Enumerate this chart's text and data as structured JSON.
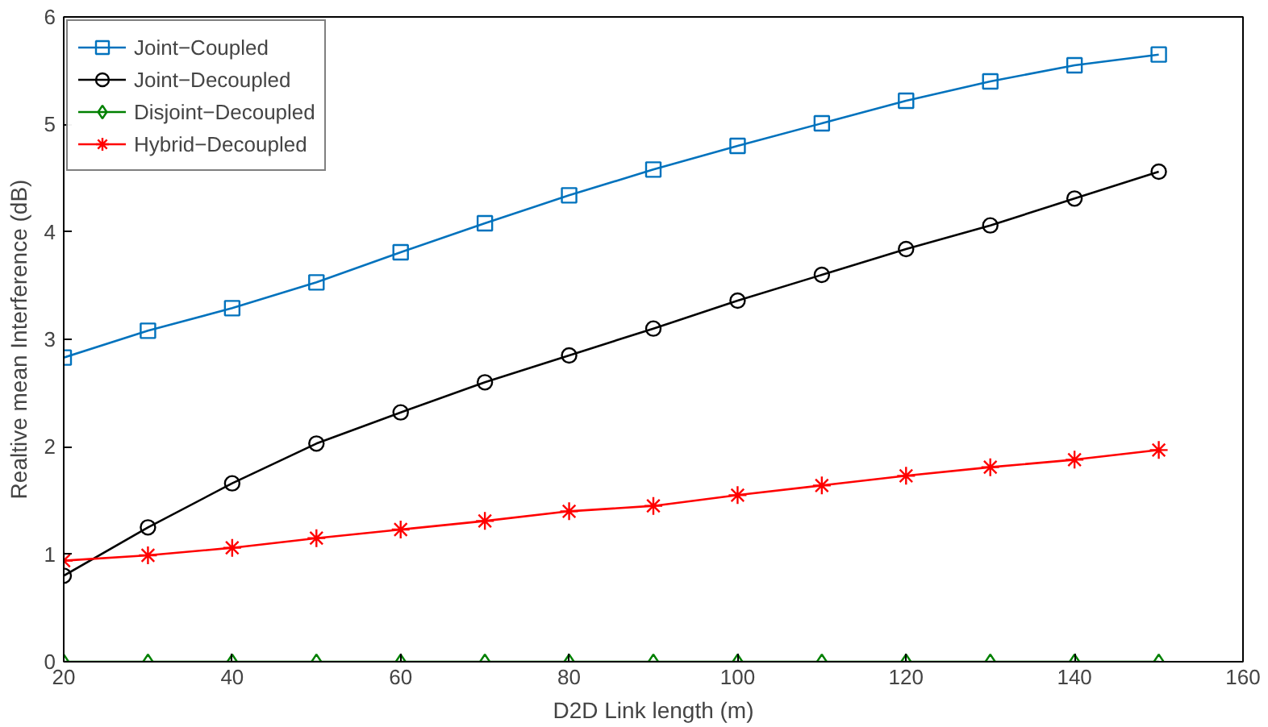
{
  "chart_data": {
    "type": "line",
    "xlabel": "D2D Link length (m)",
    "ylabel": "Realtive mean Interference (dB)",
    "x": [
      20,
      30,
      40,
      50,
      60,
      70,
      80,
      90,
      100,
      110,
      120,
      130,
      140,
      150
    ],
    "xlim": [
      20,
      160
    ],
    "xticks": [
      20,
      40,
      60,
      80,
      100,
      120,
      140,
      160
    ],
    "ylim": [
      0,
      6
    ],
    "yticks": [
      0,
      1,
      2,
      3,
      4,
      5,
      6
    ],
    "legend": "top left",
    "grid": false,
    "line_style": "solid",
    "series": [
      {
        "name": "Joint−Coupled",
        "color": "#0072bd",
        "marker": "square",
        "values": [
          2.83,
          3.08,
          3.29,
          3.53,
          3.81,
          4.08,
          4.34,
          4.58,
          4.8,
          5.01,
          5.22,
          5.4,
          5.55,
          5.65
        ]
      },
      {
        "name": "Joint−Decoupled",
        "color": "#000000",
        "marker": "circle",
        "values": [
          0.8,
          1.25,
          1.66,
          2.03,
          2.32,
          2.6,
          2.85,
          3.1,
          3.36,
          3.6,
          3.84,
          4.06,
          4.31,
          4.56
        ]
      },
      {
        "name": "Disjoint−Decoupled",
        "color": "#008000",
        "marker": "diamond",
        "values": [
          0,
          0,
          0,
          0,
          0,
          0,
          0,
          0,
          0,
          0,
          0,
          0,
          0,
          0
        ]
      },
      {
        "name": "Hybrid−Decoupled",
        "color": "#ff0000",
        "marker": "cross",
        "values": [
          0.94,
          0.99,
          1.06,
          1.15,
          1.23,
          1.31,
          1.4,
          1.45,
          1.55,
          1.64,
          1.73,
          1.81,
          1.88,
          1.97
        ]
      }
    ]
  }
}
